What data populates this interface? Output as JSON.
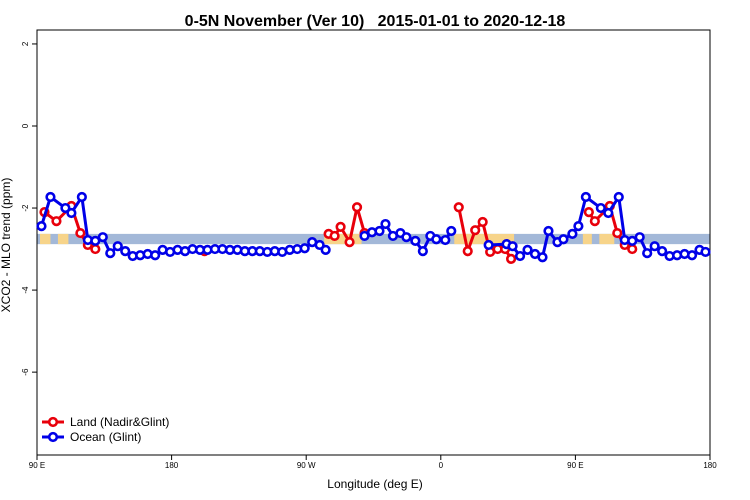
{
  "chart_data": {
    "type": "line",
    "title": "0-5N November (Ver 10)   2015-01-01 to 2020-12-18",
    "x_label": "Longitude (deg E)",
    "y_label": "XCO2 - MLO trend (ppm)",
    "xlim": [
      90,
      540
    ],
    "xticks": [
      {
        "value": 90,
        "label": "90 E"
      },
      {
        "value": 180,
        "label": "180"
      },
      {
        "value": 270,
        "label": "90 W"
      },
      {
        "value": 360,
        "label": "0"
      },
      {
        "value": 450,
        "label": "90 E"
      },
      {
        "value": 540,
        "label": "180"
      }
    ],
    "ylim": [
      -8.02,
      2.34
    ],
    "yticks": [
      2,
      0,
      -2,
      -4,
      -6
    ],
    "legend": "bottom-left",
    "band": {
      "ylim": [
        -2.88,
        -2.63
      ],
      "color": "#a3b8d8",
      "highlight_color": "#f7d48a",
      "highlights": [
        [
          92,
          99
        ],
        [
          104,
          111
        ],
        [
          282,
          307
        ],
        [
          369,
          409
        ],
        [
          455,
          461
        ],
        [
          466,
          476
        ]
      ]
    },
    "series": [
      {
        "name": "Land (Nadir&Glint)",
        "color": "#e8000b",
        "x": [
          95,
          103,
          113,
          119,
          124,
          129,
          160,
          202,
          240,
          285,
          289,
          293,
          299,
          304,
          309,
          340,
          372,
          378,
          383,
          388,
          393,
          398,
          403,
          407,
          430,
          459,
          463,
          473,
          478,
          483,
          488
        ],
        "values": [
          -2.1,
          -2.32,
          -1.95,
          -2.61,
          -2.9,
          -3.0,
          null,
          -3.05,
          null,
          -2.63,
          -2.68,
          -2.46,
          -2.83,
          -1.98,
          -2.61,
          null,
          -1.98,
          -3.05,
          -2.54,
          -2.34,
          -3.07,
          -3.0,
          -3.0,
          -3.24,
          null,
          -2.1,
          -2.32,
          -1.95,
          -2.61,
          -2.9,
          -3.0
        ]
      },
      {
        "name": "Ocean (Glint)",
        "color": "#0000e8",
        "x": [
          93,
          99,
          109,
          113,
          120,
          124,
          129,
          134,
          139,
          144,
          149,
          154,
          159,
          164,
          169,
          174,
          179,
          184,
          189,
          194,
          199,
          204,
          209,
          214,
          219,
          224,
          229,
          234,
          239,
          244,
          249,
          254,
          259,
          264,
          269,
          274,
          279,
          283,
          296,
          309,
          314,
          319,
          323,
          328,
          333,
          337,
          343,
          348,
          353,
          357,
          363,
          367,
          380,
          392,
          404,
          408,
          413,
          418,
          423,
          428,
          432,
          438,
          442,
          448,
          452,
          457,
          467,
          472,
          479,
          483,
          488,
          493,
          498,
          503,
          508,
          513,
          518,
          523,
          528,
          533,
          537
        ],
        "values": [
          -2.44,
          -1.73,
          -2.0,
          -2.12,
          -1.73,
          -2.78,
          -2.8,
          -2.71,
          -3.1,
          -2.93,
          -3.05,
          -3.17,
          -3.15,
          -3.12,
          -3.15,
          -3.02,
          -3.07,
          -3.02,
          -3.05,
          -3.0,
          -3.02,
          -3.02,
          -3.0,
          -3.0,
          -3.02,
          -3.02,
          -3.05,
          -3.05,
          -3.05,
          -3.07,
          -3.05,
          -3.07,
          -3.02,
          -3.0,
          -2.98,
          -2.83,
          -2.9,
          -3.02,
          null,
          -2.68,
          -2.59,
          -2.56,
          -2.39,
          -2.68,
          -2.61,
          -2.71,
          -2.8,
          -3.05,
          -2.68,
          -2.76,
          -2.78,
          -2.56,
          null,
          -2.9,
          -2.88,
          -2.93,
          -3.17,
          -3.02,
          -3.12,
          -3.2,
          -2.56,
          -2.83,
          -2.76,
          -2.63,
          -2.44,
          -1.73,
          -2.0,
          -2.12,
          -1.73,
          -2.78,
          -2.8,
          -2.71,
          -3.1,
          -2.93,
          -3.05,
          -3.17,
          -3.15,
          -3.12,
          -3.15,
          -3.02,
          -3.07
        ]
      }
    ]
  }
}
